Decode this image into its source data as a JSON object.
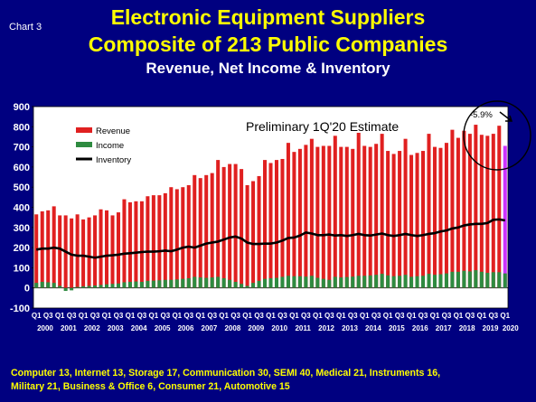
{
  "header": {
    "chart_label": "Chart 3",
    "title_line1": "Electronic Equipment Suppliers",
    "title_line2": "Composite of 213 Public Companies",
    "subtitle": "Revenue, Net Income & Inventory"
  },
  "footnote": {
    "line1": "Computer 13, Internet 13, Storage 17, Communication 30, SEMI 40, Medical 21, Instruments 16,",
    "line2": "Military 21, Business & Office 6, Consumer 21, Automotive 15"
  },
  "colors": {
    "background": "#000080",
    "plot_background": "#ffffff",
    "revenue": "#e02020",
    "income": "#2e8b40",
    "inventory": "#000000",
    "estimate_bar": "#cc33ff",
    "title": "#ffff00",
    "axis_text": "#ffffff"
  },
  "chart_data": {
    "type": "bar",
    "ylim": [
      -100,
      900
    ],
    "yticks": [
      -100,
      0,
      100,
      200,
      300,
      400,
      500,
      600,
      700,
      800,
      900
    ],
    "legend_position": "top-left",
    "legend": [
      "Revenue",
      "Income",
      "Inventory"
    ],
    "years": [
      "2000",
      "2001",
      "2002",
      "2003",
      "2004",
      "2005",
      "2006",
      "2007",
      "2008",
      "2009",
      "2010",
      "2011",
      "2012",
      "2013",
      "2014",
      "2015",
      "2016",
      "2017",
      "2018",
      "2019",
      "2020"
    ],
    "quarter_labels": [
      "Q1",
      "Q3"
    ],
    "final_quarter_label": "Q1",
    "annotation_estimate": "Preliminary 1Q'20 Estimate",
    "annotation_change": "-5.9%",
    "series": [
      {
        "name": "Revenue",
        "type": "bar",
        "values": [
          365,
          380,
          385,
          405,
          360,
          360,
          345,
          365,
          340,
          350,
          360,
          390,
          385,
          360,
          375,
          440,
          425,
          430,
          430,
          455,
          460,
          460,
          470,
          500,
          490,
          500,
          510,
          560,
          545,
          560,
          570,
          635,
          600,
          615,
          615,
          590,
          510,
          530,
          555,
          635,
          620,
          635,
          640,
          720,
          675,
          690,
          710,
          740,
          700,
          705,
          705,
          755,
          700,
          700,
          690,
          770,
          705,
          700,
          715,
          765,
          680,
          665,
          680,
          740,
          660,
          670,
          680,
          765,
          700,
          695,
          720,
          785,
          745,
          780,
          765,
          810,
          760,
          755,
          765,
          805,
          705
        ]
      },
      {
        "name": "Income",
        "type": "bar",
        "values": [
          25,
          30,
          28,
          25,
          10,
          -15,
          -12,
          5,
          8,
          10,
          12,
          15,
          18,
          20,
          22,
          28,
          30,
          32,
          30,
          35,
          36,
          38,
          40,
          40,
          42,
          45,
          48,
          55,
          52,
          50,
          52,
          55,
          48,
          40,
          30,
          20,
          10,
          25,
          35,
          45,
          48,
          50,
          55,
          60,
          58,
          58,
          56,
          60,
          50,
          45,
          40,
          55,
          52,
          54,
          56,
          60,
          60,
          62,
          65,
          70,
          62,
          58,
          60,
          65,
          55,
          58,
          60,
          70,
          65,
          68,
          72,
          80,
          80,
          85,
          82,
          88,
          80,
          75,
          78,
          78,
          72
        ]
      },
      {
        "name": "Inventory",
        "type": "line",
        "values": [
          190,
          195,
          195,
          200,
          195,
          180,
          165,
          160,
          160,
          155,
          150,
          155,
          160,
          162,
          165,
          170,
          172,
          175,
          178,
          180,
          180,
          182,
          185,
          182,
          190,
          200,
          205,
          200,
          210,
          220,
          225,
          230,
          240,
          250,
          255,
          245,
          225,
          218,
          218,
          220,
          220,
          225,
          235,
          248,
          250,
          260,
          275,
          270,
          262,
          262,
          265,
          260,
          262,
          258,
          262,
          268,
          262,
          260,
          265,
          270,
          262,
          258,
          262,
          268,
          262,
          258,
          262,
          268,
          272,
          280,
          285,
          295,
          300,
          310,
          315,
          318,
          318,
          322,
          338,
          340,
          335
        ]
      },
      {
        "name": "Estimate",
        "type": "bar",
        "index": 80,
        "value": 705
      }
    ]
  }
}
